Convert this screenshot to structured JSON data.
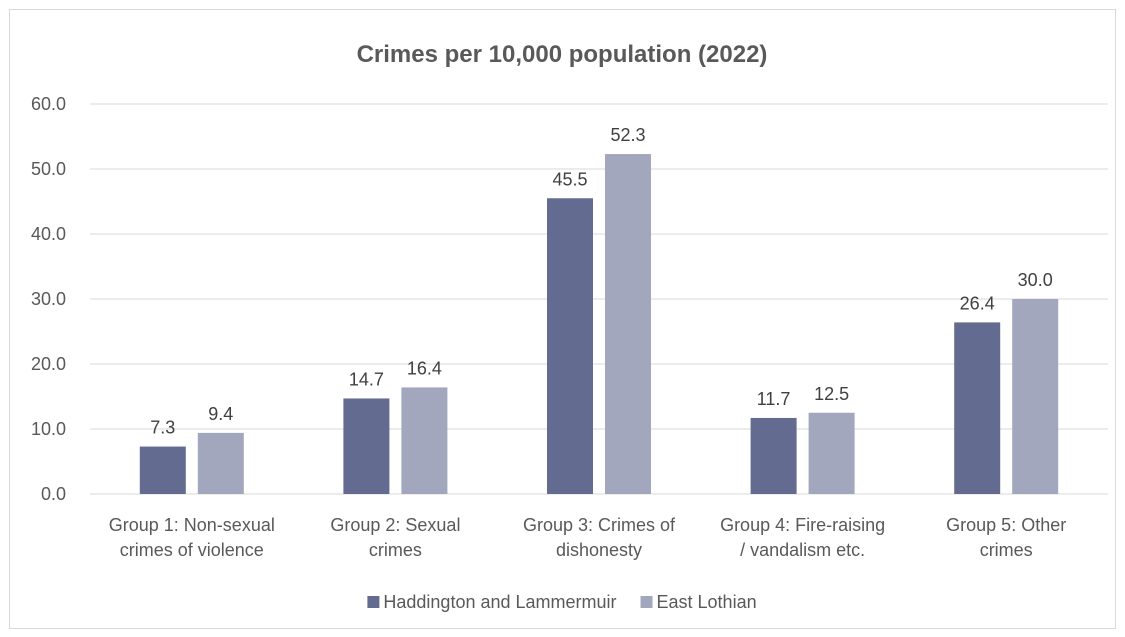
{
  "chart_data": {
    "type": "bar",
    "title": "Crimes per 10,000 population (2022)",
    "categories": [
      [
        "Group 1: Non-sexual",
        "crimes of violence"
      ],
      [
        "Group 2: Sexual",
        "crimes"
      ],
      [
        "Group 3: Crimes of",
        "dishonesty"
      ],
      [
        "Group 4: Fire-raising",
        "/ vandalism etc."
      ],
      [
        "Group 5: Other",
        "crimes"
      ]
    ],
    "series": [
      {
        "name": "Haddington and Lammermuir",
        "values": [
          7.3,
          14.7,
          45.5,
          11.7,
          26.4
        ],
        "color": "#636c90"
      },
      {
        "name": "East Lothian",
        "values": [
          9.4,
          16.4,
          52.3,
          12.5,
          30.0
        ],
        "color": "#a2a7be"
      }
    ],
    "ylim": [
      0,
      60
    ],
    "yticks": [
      0,
      10,
      20,
      30,
      40,
      50,
      60
    ],
    "xlabel": "",
    "ylabel": "",
    "grid": true,
    "legend_position": "bottom",
    "gridline_color": "#d9d9d9",
    "axis_text_color": "#595959"
  }
}
